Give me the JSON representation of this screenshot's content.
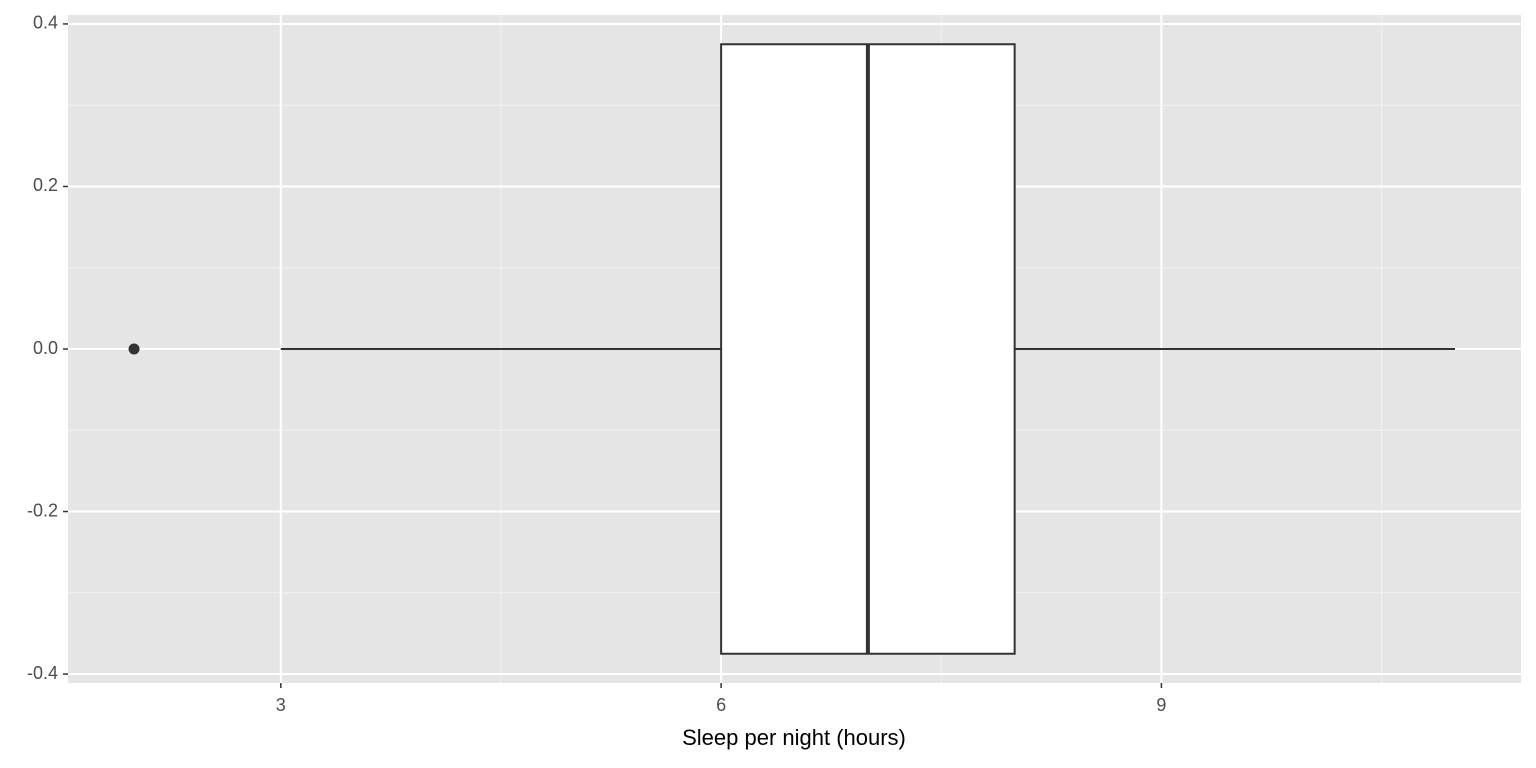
{
  "chart_data": {
    "type": "boxplot",
    "orientation": "horizontal",
    "x_label": "Sleep per night (hours)",
    "series": [
      {
        "min": 3,
        "q1": 6,
        "median": 7,
        "q3": 8,
        "max": 11,
        "outliers": [
          2
        ],
        "color": "#333333",
        "fill": "#ffffff"
      }
    ],
    "box_y": [
      -0.375,
      0.375
    ],
    "xlim": [
      1.55,
      11.45
    ],
    "xticks": [
      3,
      6,
      9
    ],
    "x_minor_grid": [
      4.5,
      7.5,
      10.5
    ],
    "ylim": [
      -0.411,
      0.411
    ],
    "yticks": [
      -0.4,
      -0.2,
      {
        "value": 0,
        "label": "0.0"
      },
      0.2,
      0.4
    ],
    "y_minor_grid": [
      -0.3,
      -0.1,
      0.1,
      0.3
    ],
    "grid": true,
    "panel_color": "#e5e5e5"
  }
}
